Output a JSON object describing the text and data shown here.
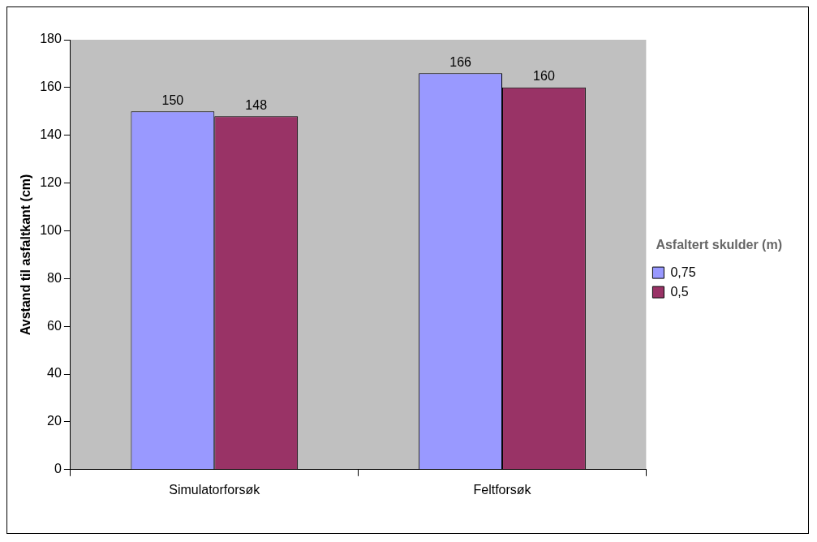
{
  "chart_data": {
    "type": "bar",
    "ylabel": "Avstand til asfaltkant (cm)",
    "legend_title": "Asfaltert skulder (m)",
    "categories": [
      "Simulatorforsøk",
      "Feltforsøk"
    ],
    "series": [
      {
        "name": "0,75",
        "color": "#9999ff",
        "values": [
          150,
          166
        ]
      },
      {
        "name": "0,5",
        "color": "#993366",
        "values": [
          148,
          160
        ]
      }
    ],
    "ylim": [
      0,
      180
    ],
    "yticks": [
      0,
      20,
      40,
      60,
      80,
      100,
      120,
      140,
      160,
      180
    ],
    "grid": false,
    "legend": "right",
    "data_labels": true
  }
}
